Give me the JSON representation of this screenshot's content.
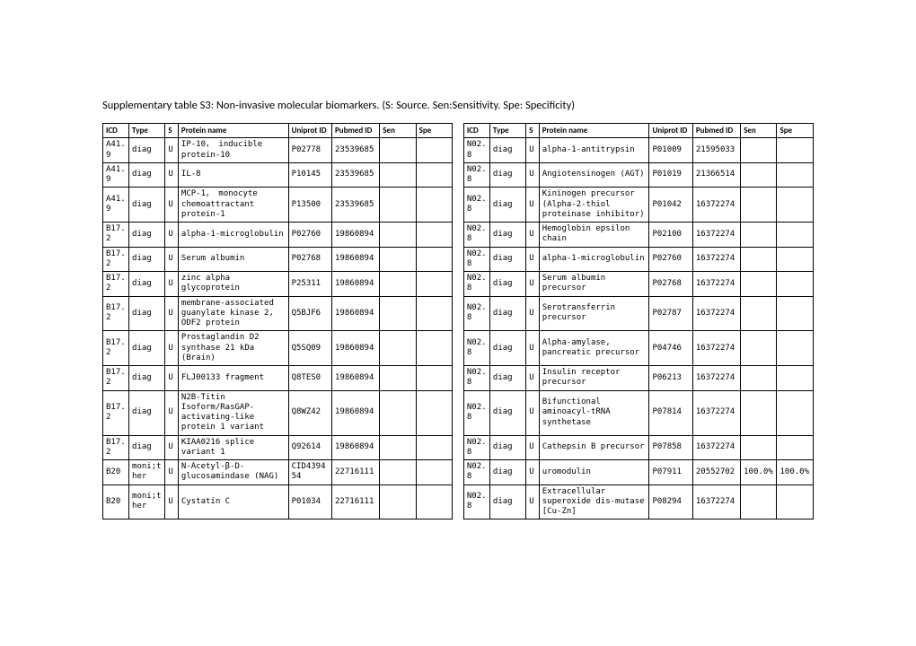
{
  "title": "Supplementary table S3: Non-invasive molecular biomarkers. (S: Source. Sen:Sensitivity. Spe: Specificity)",
  "headers": {
    "icd": "ICD",
    "type": "Type",
    "s": "S",
    "protein": "Protein name",
    "uniprot": "Uniprot ID",
    "pubmed": "Pubmed ID",
    "sen": "Sen",
    "spe": "Spe"
  },
  "rows": [
    {
      "L": {
        "icd": "A41.9",
        "type": "diag",
        "s": "U",
        "protein": "IP-10， inducible protein-10",
        "uniprot": "P02778",
        "pubmed": "23539685",
        "sen": "",
        "spe": ""
      },
      "R": {
        "icd": "N02.8",
        "type": "diag",
        "s": "U",
        "protein": "alpha-1-antitrypsin",
        "uniprot": "P01009",
        "pubmed": "21595033",
        "sen": "",
        "spe": ""
      }
    },
    {
      "L": {
        "icd": "A41.9",
        "type": "diag",
        "s": "U",
        "protein": "IL-8",
        "uniprot": "P10145",
        "pubmed": "23539685",
        "sen": "",
        "spe": ""
      },
      "R": {
        "icd": "N02.8",
        "type": "diag",
        "s": "U",
        "protein": "Angiotensinogen (AGT)",
        "uniprot": "P01019",
        "pubmed": "21366514",
        "sen": "",
        "spe": ""
      }
    },
    {
      "L": {
        "icd": "A41.9",
        "type": "diag",
        "s": "U",
        "protein": "MCP-1， monocyte chemoattractant protein-1",
        "uniprot": "P13500",
        "pubmed": "23539685",
        "sen": "",
        "spe": ""
      },
      "R": {
        "icd": "N02.8",
        "type": "diag",
        "s": "U",
        "protein": "Kininogen precursor (Alpha-2-thiol proteinase inhibitor)",
        "uniprot": "P01042",
        "pubmed": "16372274",
        "sen": "",
        "spe": ""
      }
    },
    {
      "L": {
        "icd": "B17.2",
        "type": "diag",
        "s": "U",
        "protein": "alpha-1-microglobulin",
        "uniprot": "P02760",
        "pubmed": "19860894",
        "sen": "",
        "spe": ""
      },
      "R": {
        "icd": "N02.8",
        "type": "diag",
        "s": "U",
        "protein": "Hemoglobin epsilon chain",
        "uniprot": "P02100",
        "pubmed": "16372274",
        "sen": "",
        "spe": ""
      }
    },
    {
      "L": {
        "icd": "B17.2",
        "type": "diag",
        "s": "U",
        "protein": "Serum albumin",
        "uniprot": "P02768",
        "pubmed": "19860894",
        "sen": "",
        "spe": ""
      },
      "R": {
        "icd": "N02.8",
        "type": "diag",
        "s": "U",
        "protein": "alpha-1-microglobulin",
        "uniprot": "P02760",
        "pubmed": "16372274",
        "sen": "",
        "spe": ""
      }
    },
    {
      "L": {
        "icd": "B17.2",
        "type": "diag",
        "s": "U",
        "protein": "zinc alpha glycoprotein",
        "uniprot": "P25311",
        "pubmed": "19860894",
        "sen": "",
        "spe": ""
      },
      "R": {
        "icd": "N02.8",
        "type": "diag",
        "s": "U",
        "protein": "Serum albumin precursor",
        "uniprot": "P02768",
        "pubmed": "16372274",
        "sen": "",
        "spe": ""
      }
    },
    {
      "L": {
        "icd": "B17.2",
        "type": "diag",
        "s": "U",
        "protein": "membrane-associated guanylate kinase 2, ODF2 protein",
        "uniprot": "Q5BJF6",
        "pubmed": "19860894",
        "sen": "",
        "spe": ""
      },
      "R": {
        "icd": "N02.8",
        "type": "diag",
        "s": "U",
        "protein": "Serotransferrin precursor",
        "uniprot": "P02787",
        "pubmed": "16372274",
        "sen": "",
        "spe": ""
      }
    },
    {
      "L": {
        "icd": "B17.2",
        "type": "diag",
        "s": "U",
        "protein": "Prostaglandin D2 synthase 21 kDa (Brain)",
        "uniprot": "Q5SQ09",
        "pubmed": "19860894",
        "sen": "",
        "spe": ""
      },
      "R": {
        "icd": "N02.8",
        "type": "diag",
        "s": "U",
        "protein": "Alpha-amylase, pancreatic precursor",
        "uniprot": "P04746",
        "pubmed": "16372274",
        "sen": "",
        "spe": ""
      }
    },
    {
      "L": {
        "icd": "B17.2",
        "type": "diag",
        "s": "U",
        "protein": "FLJ00133 fragment",
        "uniprot": "Q8TES0",
        "pubmed": "19860894",
        "sen": "",
        "spe": ""
      },
      "R": {
        "icd": "N02.8",
        "type": "diag",
        "s": "U",
        "protein": "Insulin receptor precursor",
        "uniprot": "P06213",
        "pubmed": "16372274",
        "sen": "",
        "spe": ""
      }
    },
    {
      "L": {
        "icd": "B17.2",
        "type": "diag",
        "s": "U",
        "protein": "N2B-Titin Isoform/RasGAP-activating-like protein 1 variant",
        "uniprot": "Q8WZ42",
        "pubmed": "19860894",
        "sen": "",
        "spe": ""
      },
      "R": {
        "icd": "N02.8",
        "type": "diag",
        "s": "U",
        "protein": "Bifunctional aminoacyl-tRNA synthetase",
        "uniprot": "P07814",
        "pubmed": "16372274",
        "sen": "",
        "spe": ""
      }
    },
    {
      "L": {
        "icd": "B17.2",
        "type": "diag",
        "s": "U",
        "protein": "KIAA0216 splice variant 1",
        "uniprot": "Q92614",
        "pubmed": "19860894",
        "sen": "",
        "spe": ""
      },
      "R": {
        "icd": "N02.8",
        "type": "diag",
        "s": "U",
        "protein": "Cathepsin B precursor",
        "uniprot": "P07858",
        "pubmed": "16372274",
        "sen": "",
        "spe": ""
      }
    },
    {
      "L": {
        "icd": "B20",
        "type": "moni;ther",
        "s": "U",
        "protein": "N-Acetyl-β-D-glucosamindase (NAG)",
        "uniprot": "CID439454",
        "pubmed": "22716111",
        "sen": "",
        "spe": ""
      },
      "R": {
        "icd": "N02.8",
        "type": "diag",
        "s": "U",
        "protein": "uromodulin",
        "uniprot": "P07911",
        "pubmed": "20552702",
        "sen": "100.0%",
        "spe": "100.0%"
      }
    },
    {
      "L": {
        "icd": "B20",
        "type": "moni;ther",
        "s": "U",
        "protein": "Cystatin C",
        "uniprot": "P01034",
        "pubmed": "22716111",
        "sen": "",
        "spe": ""
      },
      "R": {
        "icd": "N02.8",
        "type": "diag",
        "s": "U",
        "protein": "Extracellular superoxide dis-mutase [Cu-Zn]",
        "uniprot": "P08294",
        "pubmed": "16372274",
        "sen": "",
        "spe": ""
      }
    }
  ]
}
